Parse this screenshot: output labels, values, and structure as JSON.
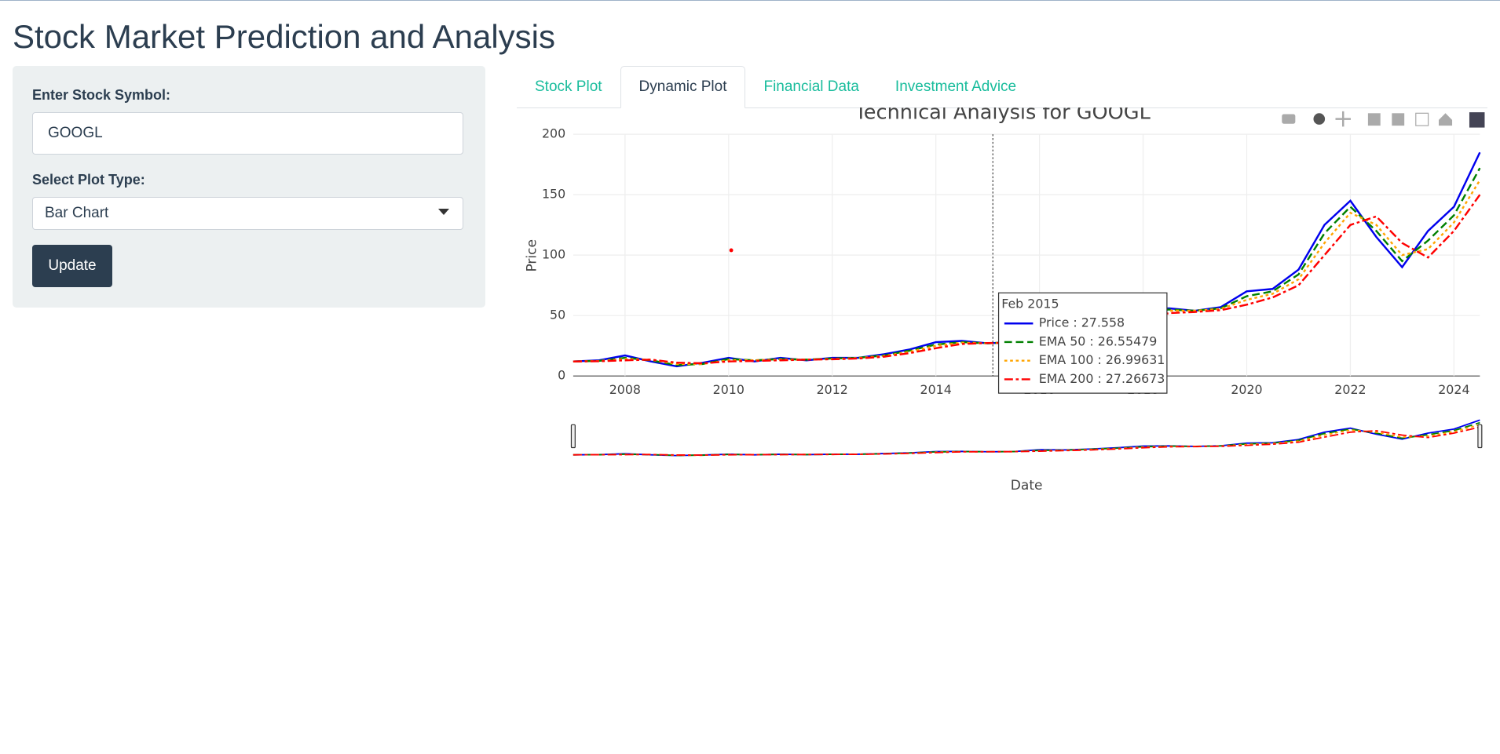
{
  "header": {
    "title": "Stock Market Prediction and Analysis"
  },
  "sidebar": {
    "symbol_label": "Enter Stock Symbol:",
    "symbol_value": "GOOGL",
    "plot_type_label": "Select Plot Type:",
    "plot_type_value": "Bar Chart",
    "button": "Update"
  },
  "tabs": [
    "Stock Plot",
    "Dynamic Plot",
    "Financial Data",
    "Investment Advice"
  ],
  "active_tab": 1,
  "chart_data": {
    "type": "line",
    "title": "Technical Analysis for GOOGL",
    "x_label": "Date",
    "y_label": "Price",
    "x": [
      2007,
      2007.5,
      2008,
      2008.5,
      2009,
      2009.5,
      2010,
      2010.5,
      2011,
      2011.5,
      2012,
      2012.5,
      2013,
      2013.5,
      2014,
      2014.5,
      2015,
      2015.5,
      2016,
      2016.5,
      2017,
      2017.5,
      2018,
      2018.5,
      2019,
      2019.5,
      2020,
      2020.5,
      2021,
      2021.5,
      2022,
      2022.5,
      2023,
      2023.5,
      2024,
      2024.5
    ],
    "xlim": [
      2007,
      2024.5
    ],
    "xticks": [
      2008,
      2010,
      2012,
      2014,
      2016,
      2018,
      2020,
      2022,
      2024
    ],
    "ylim": [
      0,
      200
    ],
    "yticks": [
      0,
      50,
      100,
      150,
      200
    ],
    "grid": true,
    "series": [
      {
        "name": "Price",
        "color": "#0000ee",
        "dash": "solid",
        "values": [
          12,
          13,
          17,
          12,
          8,
          11,
          15,
          12,
          15,
          13,
          15,
          15,
          18,
          22,
          28,
          29,
          27,
          28,
          37,
          36,
          41,
          47,
          55,
          56,
          54,
          57,
          70,
          72,
          88,
          125,
          145,
          115,
          90,
          120,
          140,
          185
        ]
      },
      {
        "name": "EMA 50",
        "color": "#008000",
        "dash": "dash",
        "values": [
          12,
          12.5,
          15,
          13,
          9,
          10,
          14,
          13,
          14,
          13.5,
          14.5,
          15,
          17,
          21,
          26,
          28,
          27,
          28,
          34,
          35,
          40,
          45,
          52,
          55,
          54,
          56,
          66,
          70,
          84,
          118,
          140,
          120,
          95,
          112,
          133,
          172
        ]
      },
      {
        "name": "EMA 100",
        "color": "#ffa500",
        "dash": "dot",
        "values": [
          12,
          12.3,
          14,
          13.5,
          10,
          10,
          13,
          13,
          13.5,
          13.5,
          14,
          14.8,
          16.5,
          20,
          25,
          27.5,
          27,
          27.8,
          32,
          34.5,
          38,
          43,
          50,
          54,
          54,
          55.5,
          63,
          68,
          80,
          110,
          135,
          125,
          100,
          105,
          127,
          162
        ]
      },
      {
        "name": "EMA 200",
        "color": "#ff0000",
        "dash": "dashdot",
        "values": [
          12,
          12.2,
          13,
          13.5,
          11,
          10.5,
          12,
          12.5,
          13,
          13.5,
          13.8,
          14.5,
          16,
          19,
          23,
          26.5,
          27.3,
          27.5,
          30,
          33,
          36,
          41,
          47,
          52,
          53,
          54.5,
          59,
          65,
          75,
          100,
          125,
          132,
          110,
          98,
          120,
          150
        ]
      }
    ],
    "extra_points": [
      {
        "x": 2010.05,
        "y": 104,
        "color": "#ff0000"
      }
    ],
    "range_slider": true,
    "hover": {
      "x": 2015.1,
      "title": "Feb 2015",
      "items": [
        "Price : 27.558",
        "EMA 50 : 26.55479",
        "EMA 100 : 26.99631",
        "EMA 200 : 27.26673"
      ]
    }
  }
}
